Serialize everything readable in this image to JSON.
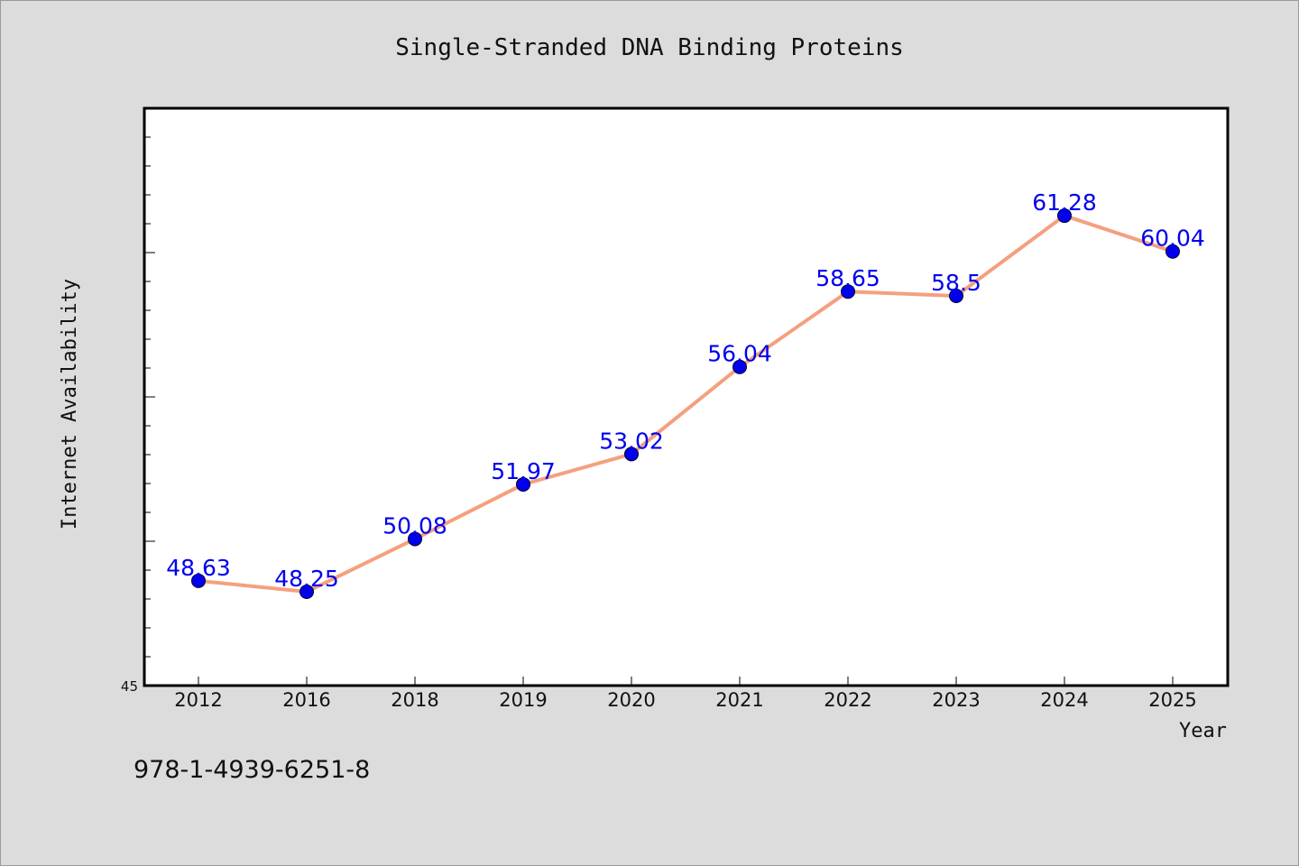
{
  "chart_data": {
    "type": "line",
    "title": "Single-Stranded DNA Binding Proteins",
    "xlabel": "Year",
    "ylabel": "Internet Availability",
    "categories": [
      "2012",
      "2016",
      "2018",
      "2019",
      "2020",
      "2021",
      "2022",
      "2023",
      "2024",
      "2025"
    ],
    "values": [
      48.63,
      48.25,
      50.08,
      51.97,
      53.02,
      56.04,
      58.65,
      58.5,
      61.28,
      60.04
    ],
    "data_labels": [
      "48.63",
      "48.25",
      "50.08",
      "51.97",
      "53.02",
      "56.04",
      "58.65",
      "58.5",
      "61.28",
      "60.04"
    ],
    "ylim": [
      45,
      65
    ],
    "yticks_labeled": [
      "45"
    ],
    "grid": false,
    "line_color": "#f4a07f",
    "marker_color": "#0000ee",
    "label_color": "#0000ee"
  },
  "footnote": "978-1-4939-6251-8"
}
